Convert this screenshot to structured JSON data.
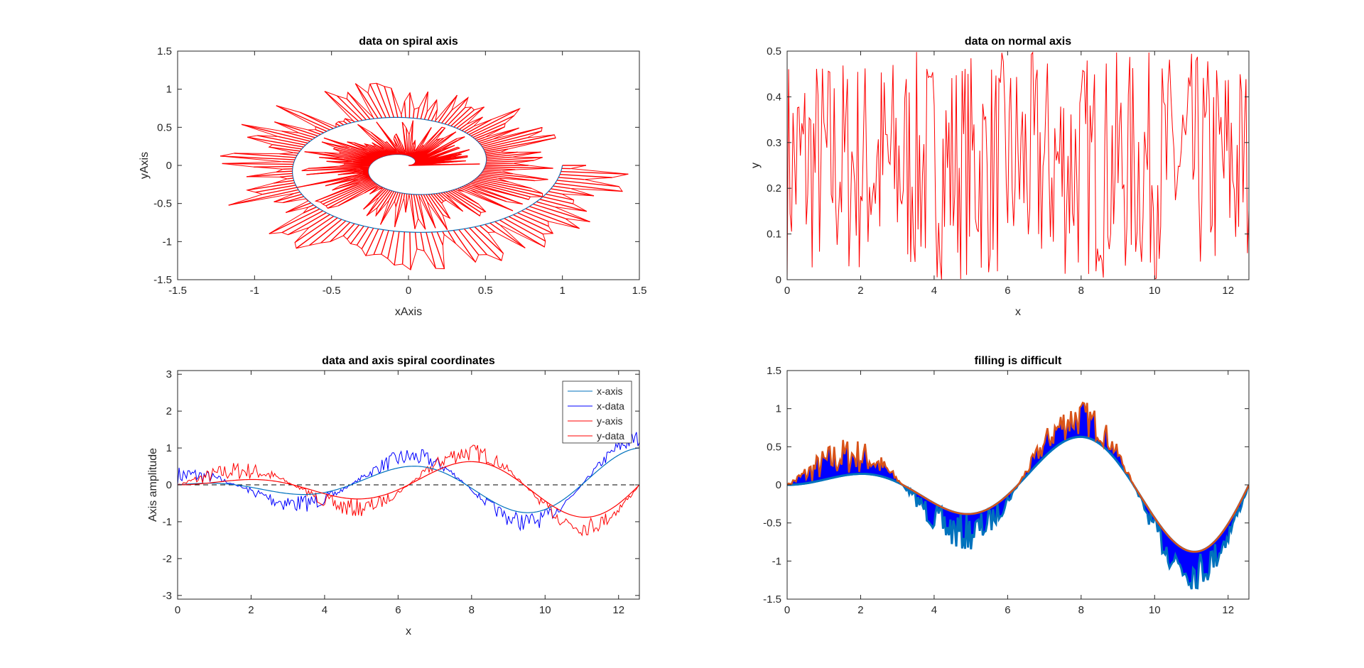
{
  "figure": {
    "colors": {
      "background": "#ffffff",
      "axes": "#262626",
      "red": "#ff0000",
      "blue": "#0000ff",
      "teal": "#0072bd",
      "orange": "#d95319"
    }
  },
  "chart_data": [
    {
      "id": "spiral",
      "type": "line",
      "title": "data on spiral axis",
      "xlabel": "xAxis",
      "ylabel": "yAxis",
      "xlim": [
        -1.5,
        1.5
      ],
      "ylim": [
        -1.5,
        1.5
      ],
      "xticks": [
        "-1.5",
        "-1",
        "-0.5",
        "0",
        "0.5",
        "1",
        "1.5"
      ],
      "yticks": [
        "-1.5",
        "-1",
        "-0.5",
        "0",
        "0.5",
        "1",
        "1.5"
      ],
      "grid": false,
      "series": [
        {
          "role": "axis",
          "color": "#0072bd",
          "t_range": [
            0,
            12.566
          ],
          "radius_growth": 0.0796,
          "point_count": 315
        },
        {
          "role": "data",
          "color": "#ff0000",
          "t_range": [
            0,
            12.566
          ],
          "noise_range": [
            0,
            0.5
          ],
          "point_count": 315
        }
      ]
    },
    {
      "id": "normal",
      "type": "line",
      "title": "data on normal axis",
      "xlabel": "x",
      "ylabel": "y",
      "xlim": [
        0,
        12.566
      ],
      "ylim": [
        0,
        0.5
      ],
      "xticks": [
        "0",
        "2",
        "4",
        "6",
        "8",
        "10",
        "12"
      ],
      "yticks": [
        "0",
        "0.1",
        "0.2",
        "0.3",
        "0.4",
        "0.5"
      ],
      "grid": false,
      "series": [
        {
          "role": "data",
          "color": "#ff0000",
          "x_range": [
            0,
            12.566
          ],
          "y_range": [
            0,
            0.5
          ],
          "point_count": 315
        }
      ]
    },
    {
      "id": "coords",
      "type": "line",
      "title": "data and axis spiral coordinates",
      "xlabel": "x",
      "ylabel": "Axis amplitude",
      "xlim": [
        0,
        12.566
      ],
      "ylim": [
        -3.1,
        3.1
      ],
      "xticks": [
        "0",
        "2",
        "4",
        "6",
        "8",
        "10",
        "12"
      ],
      "yticks": [
        "-3",
        "-2",
        "-1",
        "0",
        "1",
        "2",
        "3"
      ],
      "grid": false,
      "legend_position": "top-right",
      "zero_line": {
        "y": 0,
        "style": "dashed",
        "color": "#000000"
      },
      "series": [
        {
          "name": "x-axis",
          "color": "#0072bd"
        },
        {
          "name": "x-data",
          "color": "#0000ff"
        },
        {
          "name": "y-axis",
          "color": "#ff0000"
        },
        {
          "name": "y-data",
          "color": "#ff0000"
        }
      ]
    },
    {
      "id": "fill",
      "type": "area",
      "title": "filling is difficult",
      "xlabel": "",
      "ylabel": "",
      "xlim": [
        0,
        12.566
      ],
      "ylim": [
        -1.5,
        1.5
      ],
      "xticks": [
        "0",
        "2",
        "4",
        "6",
        "8",
        "10",
        "12"
      ],
      "yticks": [
        "-1.5",
        "-1",
        "-0.5",
        "0",
        "0.5",
        "1",
        "1.5"
      ],
      "grid": false,
      "series": [
        {
          "role": "fill",
          "color": "#0000ff"
        },
        {
          "role": "baseline",
          "color": "#0072bd"
        },
        {
          "role": "upper-edge",
          "color": "#d95319"
        }
      ]
    }
  ]
}
